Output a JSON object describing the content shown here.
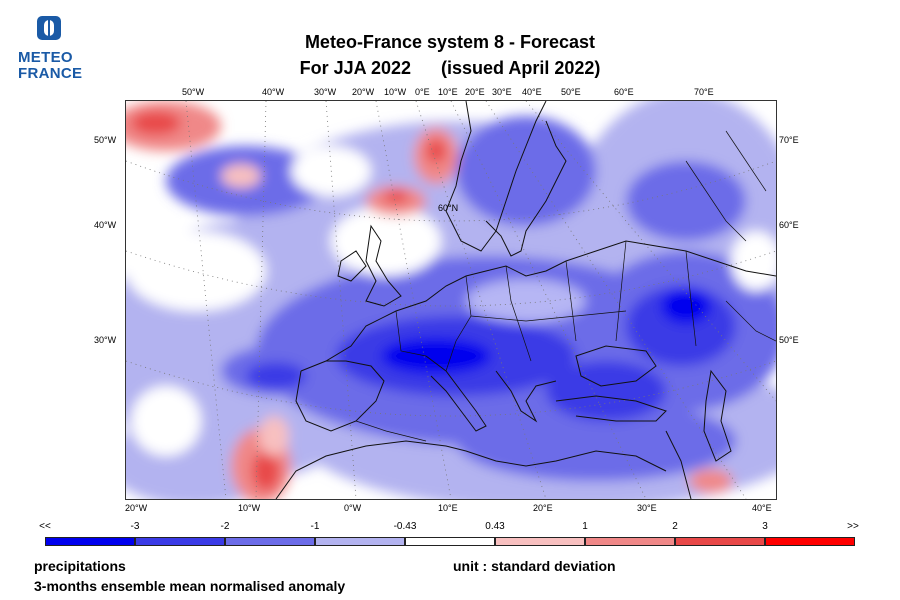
{
  "logo": {
    "line1": "METEO",
    "line2": "FRANCE"
  },
  "title": {
    "line1": "Meteo-France system 8  -  Forecast",
    "line2": "For JJA 2022      (issued April 2022)"
  },
  "map": {
    "top_lon_labels": [
      "50°W",
      "40°W",
      "30°W",
      "20°W",
      "10°W",
      "0°E",
      "10°E",
      "20°E",
      "30°E",
      "40°E",
      "50°E",
      "60°E",
      "70°E"
    ],
    "bottom_lon_labels": [
      "20°W",
      "10°W",
      "0°W",
      "10°E",
      "20°E",
      "30°E",
      "40°E"
    ],
    "left_labels": [
      "50°W",
      "40°W",
      "30°W"
    ],
    "right_labels": [
      "70°E",
      "60°E",
      "50°E"
    ],
    "center_label": "60°N"
  },
  "colorbar": {
    "labels": [
      "<<",
      "-3",
      "-2",
      "-1",
      "-0.43",
      "0.43",
      "1",
      "2",
      "3",
      ">>"
    ],
    "colors": [
      "#0000ee",
      "#3a3ae6",
      "#6c6ce8",
      "#b3b3f0",
      "#ffffff",
      "#f8c0c0",
      "#f08888",
      "#e84848",
      "#ff0000"
    ]
  },
  "footer": {
    "variable": "precipitations",
    "description": "3-months ensemble mean normalised anomaly",
    "unit": "unit : standard deviation"
  }
}
